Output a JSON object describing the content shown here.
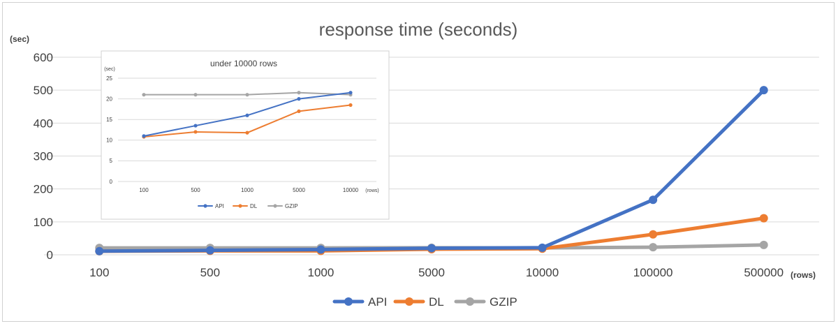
{
  "chart_data": [
    {
      "type": "line",
      "title": "response time (seconds)",
      "ylabel": "(sec)",
      "xlabel": "(rows)",
      "categories": [
        "100",
        "500",
        "1000",
        "5000",
        "10000",
        "100000",
        "500000"
      ],
      "yticks": [
        "0",
        "100",
        "200",
        "300",
        "400",
        "500",
        "600"
      ],
      "ylim": [
        0,
        600
      ],
      "grid": true,
      "legend": "bottom",
      "series": [
        {
          "name": "API",
          "color": "#4472C4",
          "values": [
            11,
            13.5,
            16,
            20,
            21.5,
            167,
            500
          ]
        },
        {
          "name": "DL",
          "color": "#ED7D31",
          "values": [
            10.8,
            12,
            11.8,
            17,
            18.5,
            62,
            111
          ]
        },
        {
          "name": "GZIP",
          "color": "#A5A5A5",
          "values": [
            21,
            21,
            21,
            21.5,
            21,
            23,
            30
          ]
        }
      ]
    },
    {
      "type": "line",
      "title": "under 10000 rows",
      "ylabel": "(sec)",
      "xlabel": "(rows)",
      "categories": [
        "100",
        "500",
        "1000",
        "5000",
        "10000"
      ],
      "yticks": [
        "0",
        "5",
        "10",
        "15",
        "20",
        "25"
      ],
      "ylim": [
        0,
        25
      ],
      "grid": true,
      "legend": "bottom",
      "series": [
        {
          "name": "API",
          "color": "#4472C4",
          "values": [
            11,
            13.5,
            16,
            20,
            21.5
          ]
        },
        {
          "name": "DL",
          "color": "#ED7D31",
          "values": [
            10.8,
            12,
            11.8,
            17,
            18.5
          ]
        },
        {
          "name": "GZIP",
          "color": "#A5A5A5",
          "values": [
            21,
            21,
            21,
            21.5,
            21
          ]
        }
      ]
    }
  ]
}
